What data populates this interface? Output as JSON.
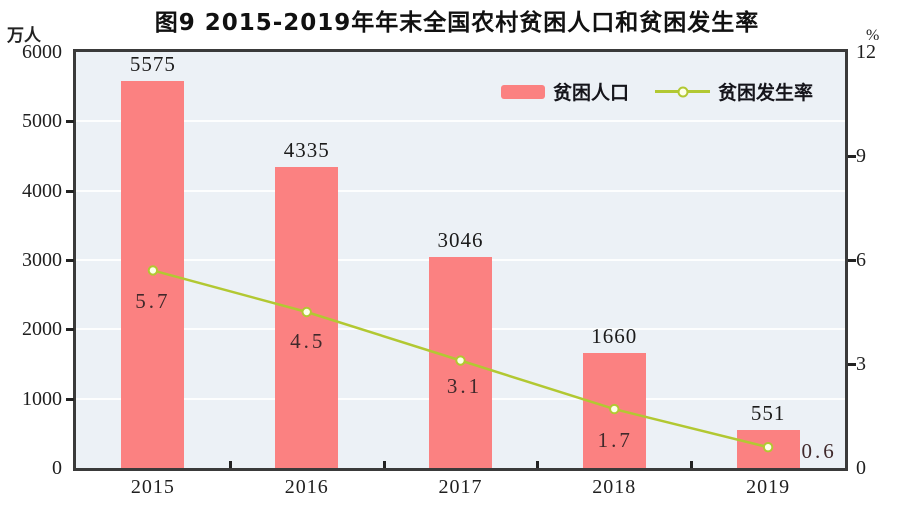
{
  "title": "图9  2015-2019年年末全国农村贫困人口和贫困发生率",
  "left_axis": {
    "unit": "万人",
    "ticks": [
      "6000",
      "5000",
      "4000",
      "3000",
      "2000",
      "1000",
      "0"
    ]
  },
  "right_axis": {
    "unit": "%",
    "ticks": [
      "12",
      "9",
      "6",
      "3",
      "0"
    ]
  },
  "legend": [
    {
      "label": "贫困人口",
      "type": "bar"
    },
    {
      "label": "贫困发生率",
      "type": "line"
    }
  ],
  "chart_data": {
    "type": "bar+line",
    "title": "图9  2015-2019年年末全国农村贫困人口和贫困发生率",
    "categories": [
      "2015",
      "2016",
      "2017",
      "2018",
      "2019"
    ],
    "series": [
      {
        "name": "贫困人口",
        "type": "bar",
        "axis": "left",
        "unit": "万人",
        "values": [
          5575,
          4335,
          3046,
          1660,
          551
        ]
      },
      {
        "name": "贫困发生率",
        "type": "line",
        "axis": "right",
        "unit": "%",
        "values": [
          5.7,
          4.5,
          3.1,
          1.7,
          0.6
        ]
      }
    ],
    "left_ylim": [
      0,
      6000
    ],
    "right_ylim": [
      0,
      12
    ],
    "grid": "horizontal-white",
    "legend_position": "top-right-inside"
  },
  "colors": {
    "bar": "#fb8181",
    "line": "#b2c832",
    "marker_fill": "#fdffe9",
    "plot_bg": "#ecf1f6",
    "grid": "#fdfefe",
    "border": "#3a3a3a",
    "bar_label": "#1b1b1b",
    "rate_label": "#40292b"
  }
}
